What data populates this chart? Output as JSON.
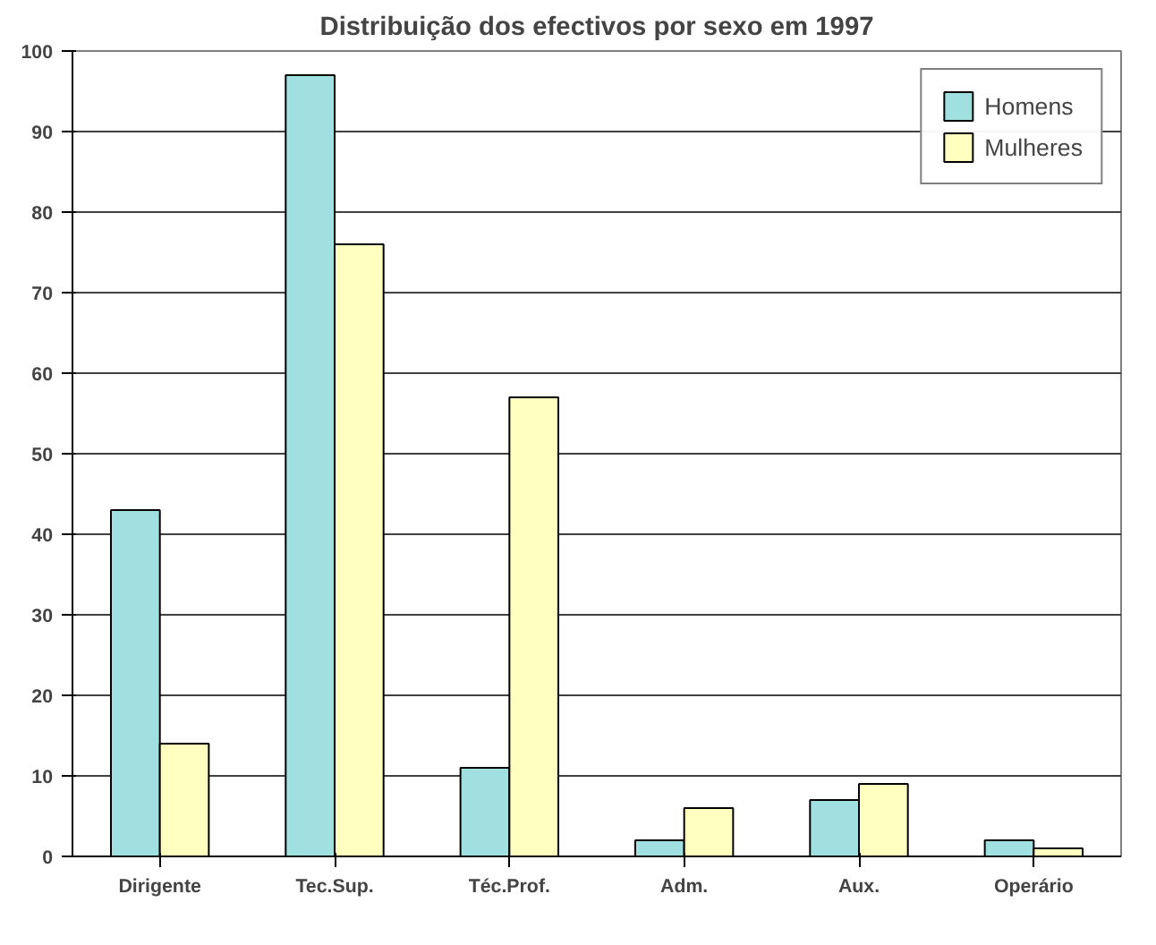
{
  "chart_data": {
    "type": "bar",
    "title": "Distribuição dos efectivos por sexo em 1997",
    "categories": [
      "Dirigente",
      "Tec.Sup.",
      "Téc.Prof.",
      "Adm.",
      "Aux.",
      "Operário"
    ],
    "series": [
      {
        "name": "Homens",
        "color": "#a0e0e0",
        "values": [
          43,
          97,
          11,
          2,
          7,
          2
        ]
      },
      {
        "name": "Mulheres",
        "color": "#ffffc0",
        "values": [
          14,
          76,
          57,
          6,
          9,
          1
        ]
      }
    ],
    "ylim": [
      0,
      100
    ],
    "yticks": [
      0,
      10,
      20,
      30,
      40,
      50,
      60,
      70,
      80,
      90,
      100
    ],
    "grid": "y",
    "legend": "top right"
  }
}
